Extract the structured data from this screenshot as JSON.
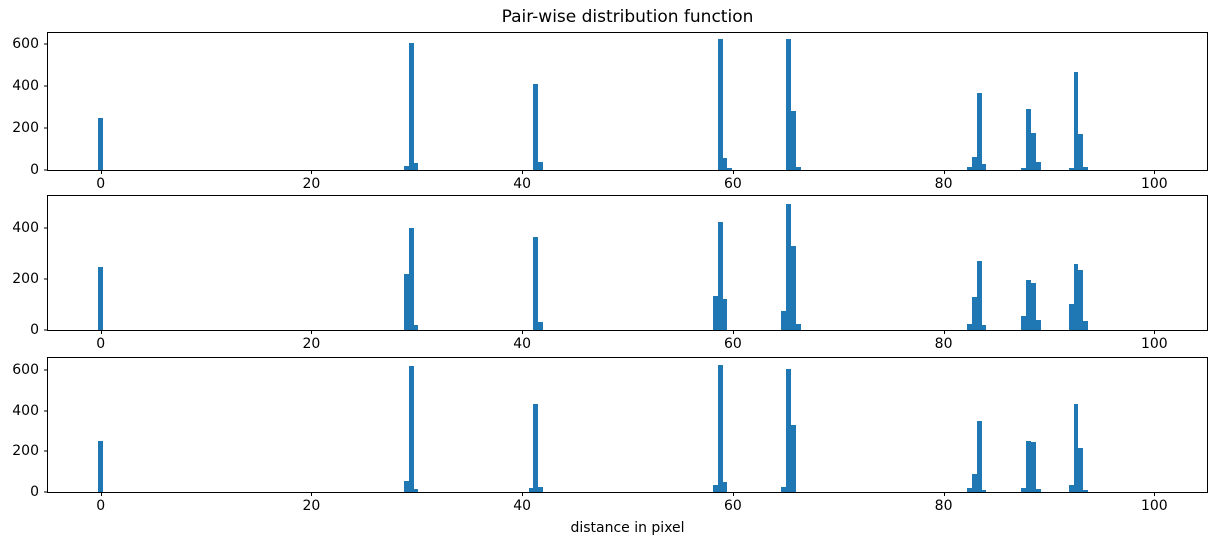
{
  "chart_data": {
    "type": "bar",
    "title": "Pair-wise distribution function",
    "xlabel": "distance in pixel",
    "ylabel": "",
    "bar_color": "#1f77b4",
    "spine_color": "#000000",
    "grid": false,
    "legend": false,
    "xlim": [
      -5,
      105
    ],
    "xticks": [
      0,
      20,
      40,
      60,
      80,
      100
    ],
    "bin_width": 0.46,
    "subplots": [
      {
        "name": "top",
        "ylim": [
          0,
          650
        ],
        "yticks": [
          0,
          200,
          400,
          600
        ],
        "bars": [
          [
            0,
            245
          ],
          [
            29.0,
            20
          ],
          [
            29.46,
            605
          ],
          [
            29.92,
            35
          ],
          [
            41.3,
            410
          ],
          [
            41.76,
            40
          ],
          [
            58.8,
            620
          ],
          [
            59.26,
            55
          ],
          [
            59.72,
            10
          ],
          [
            65.3,
            620
          ],
          [
            65.76,
            280
          ],
          [
            66.22,
            15
          ],
          [
            82.45,
            15
          ],
          [
            82.91,
            60
          ],
          [
            83.37,
            365
          ],
          [
            83.83,
            30
          ],
          [
            87.6,
            10
          ],
          [
            88.06,
            290
          ],
          [
            88.52,
            175
          ],
          [
            88.98,
            40
          ],
          [
            92.1,
            10
          ],
          [
            92.56,
            465
          ],
          [
            93.02,
            170
          ],
          [
            93.48,
            15
          ]
        ]
      },
      {
        "name": "middle",
        "ylim": [
          0,
          525
        ],
        "yticks": [
          0,
          200,
          400
        ],
        "bars": [
          [
            0,
            245
          ],
          [
            29.0,
            220
          ],
          [
            29.46,
            400
          ],
          [
            29.92,
            20
          ],
          [
            41.3,
            365
          ],
          [
            41.76,
            30
          ],
          [
            58.34,
            135
          ],
          [
            58.8,
            425
          ],
          [
            59.26,
            120
          ],
          [
            64.84,
            75
          ],
          [
            65.3,
            495
          ],
          [
            65.76,
            330
          ],
          [
            66.22,
            25
          ],
          [
            82.45,
            25
          ],
          [
            82.91,
            130
          ],
          [
            83.37,
            270
          ],
          [
            83.83,
            20
          ],
          [
            87.6,
            55
          ],
          [
            88.06,
            195
          ],
          [
            88.52,
            185
          ],
          [
            88.98,
            40
          ],
          [
            92.1,
            100
          ],
          [
            92.56,
            260
          ],
          [
            93.02,
            235
          ],
          [
            93.48,
            35
          ]
        ]
      },
      {
        "name": "bottom",
        "ylim": [
          0,
          660
        ],
        "yticks": [
          0,
          200,
          400,
          600
        ],
        "bars": [
          [
            0,
            250
          ],
          [
            29.0,
            55
          ],
          [
            29.46,
            620
          ],
          [
            29.92,
            15
          ],
          [
            40.84,
            20
          ],
          [
            41.3,
            435
          ],
          [
            41.76,
            25
          ],
          [
            58.34,
            35
          ],
          [
            58.8,
            625
          ],
          [
            59.26,
            50
          ],
          [
            64.84,
            25
          ],
          [
            65.3,
            605
          ],
          [
            65.76,
            330
          ],
          [
            82.45,
            20
          ],
          [
            82.91,
            90
          ],
          [
            83.37,
            350
          ],
          [
            83.83,
            10
          ],
          [
            87.6,
            20
          ],
          [
            88.06,
            250
          ],
          [
            88.52,
            245
          ],
          [
            88.98,
            15
          ],
          [
            92.1,
            35
          ],
          [
            92.56,
            435
          ],
          [
            93.02,
            215
          ],
          [
            93.48,
            10
          ]
        ]
      }
    ]
  }
}
